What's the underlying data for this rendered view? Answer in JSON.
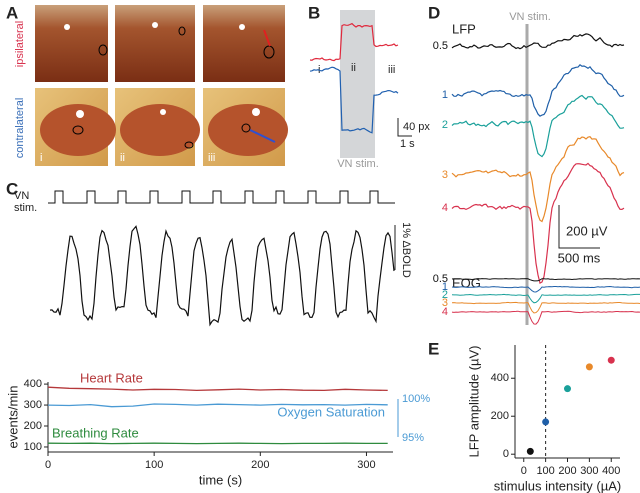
{
  "panels": {
    "A": {
      "label": "A",
      "rows": [
        "ipsilateral",
        "contralateral"
      ],
      "columns": [
        "i",
        "ii",
        "iii"
      ]
    },
    "B": {
      "label": "B",
      "phases": [
        "i",
        "ii",
        "iii"
      ],
      "scale_y": "40 px",
      "scale_x": "1 s",
      "stim": "VN stim."
    },
    "C": {
      "label": "C",
      "stim": [
        "VN",
        "stim."
      ],
      "scale_bold": "1% ΔBOLD",
      "o2_scale": [
        "100%",
        "95%"
      ]
    },
    "D": {
      "label": "D",
      "lfp": "LFP",
      "stim": "VN stim.",
      "lfp_levels": [
        "0.5",
        "1",
        "2",
        "3",
        "4"
      ],
      "colors": [
        "#111111",
        "#1f5fa8",
        "#1aa09a",
        "#e8892a",
        "#d8324e"
      ],
      "scale_y": "200 µV",
      "scale_x": "500 ms",
      "eog": "EOG",
      "eog_levels": [
        "0.5",
        "1",
        "2",
        "3",
        "4"
      ]
    },
    "E": {
      "label": "E"
    }
  },
  "chart_data": [
    {
      "type": "line",
      "x": [
        0,
        20,
        40,
        60,
        80,
        100,
        120,
        140,
        160,
        180,
        200,
        220,
        240,
        260,
        280,
        300,
        320
      ],
      "xlim": [
        0,
        325
      ],
      "xticks": [
        0,
        100,
        200,
        300
      ],
      "ylim": [
        76,
        410
      ],
      "yticks": [
        100,
        200,
        300,
        400
      ],
      "xlabel": "time (s)",
      "ylabel": "events/min",
      "series": [
        {
          "name": "Heart Rate",
          "color": "#b5383a",
          "values": [
            385,
            380,
            378,
            376,
            372,
            375,
            374,
            370,
            373,
            376,
            372,
            374,
            371,
            370,
            375,
            372,
            370
          ]
        },
        {
          "name": "Oxygen Saturation",
          "color": "#4a9ad4",
          "values": [
            300,
            298,
            302,
            292,
            295,
            305,
            303,
            300,
            304,
            302,
            300,
            303,
            301,
            302,
            300,
            303,
            301
          ]
        },
        {
          "name": "Breathing Rate",
          "color": "#2e8b3e",
          "values": [
            118,
            117,
            118,
            116,
            117,
            118,
            117,
            116,
            117,
            118,
            117,
            116,
            117,
            117,
            118,
            117,
            117
          ]
        }
      ]
    },
    {
      "type": "scatter",
      "x": [
        30,
        100,
        200,
        300,
        400
      ],
      "values": [
        15,
        170,
        345,
        460,
        495
      ],
      "colors": [
        "#111111",
        "#1f5fa8",
        "#1aa09a",
        "#e8892a",
        "#d8324e"
      ],
      "xlim": [
        -40,
        440
      ],
      "ylim": [
        -20,
        575
      ],
      "xticks": [
        0,
        100,
        200,
        300,
        400
      ],
      "yticks": [
        0,
        200,
        400
      ],
      "xlabel": "stimulus intensity (µA)",
      "ylabel": "LFP amplitude (µV)",
      "reference_line_x": 100
    }
  ]
}
